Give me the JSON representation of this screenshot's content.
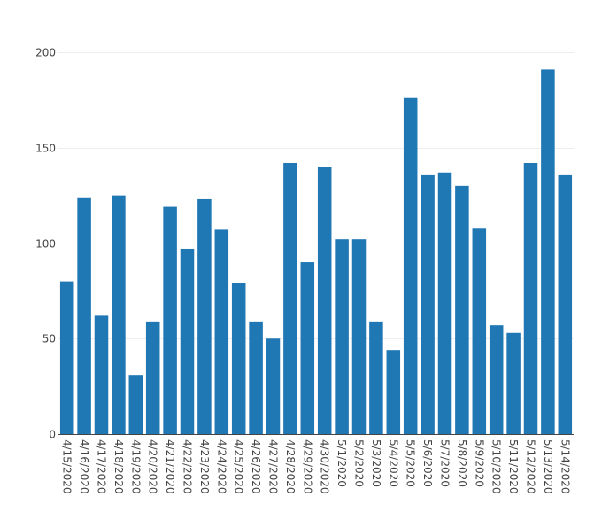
{
  "chart_data": {
    "type": "bar",
    "title": "",
    "xlabel": "",
    "ylabel": "",
    "categories": [
      "4/15/2020",
      "4/16/2020",
      "4/17/2020",
      "4/18/2020",
      "4/19/2020",
      "4/20/2020",
      "4/21/2020",
      "4/22/2020",
      "4/23/2020",
      "4/24/2020",
      "4/25/2020",
      "4/26/2020",
      "4/27/2020",
      "4/28/2020",
      "4/29/2020",
      "4/30/2020",
      "5/1/2020",
      "5/2/2020",
      "5/3/2020",
      "5/4/2020",
      "5/5/2020",
      "5/6/2020",
      "5/7/2020",
      "5/8/2020",
      "5/9/2020",
      "5/10/2020",
      "5/11/2020",
      "5/12/2020",
      "5/13/2020",
      "5/14/2020"
    ],
    "values": [
      80,
      124,
      62,
      125,
      31,
      59,
      119,
      97,
      123,
      107,
      79,
      59,
      50,
      142,
      90,
      140,
      102,
      102,
      59,
      44,
      176,
      136,
      137,
      130,
      108,
      57,
      53,
      142,
      191,
      136
    ],
    "ylim": [
      0,
      200
    ],
    "yticks": [
      0,
      50,
      100,
      150,
      200
    ],
    "grid": true,
    "bar_color": "#1f77b4",
    "grid_color": "#eeeeee"
  }
}
